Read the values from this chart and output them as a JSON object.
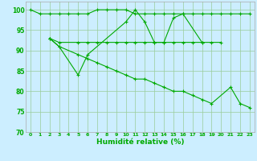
{
  "xlabel": "Humidité relative (%)",
  "xlim": [
    -0.5,
    23.5
  ],
  "ylim": [
    70,
    102
  ],
  "yticks": [
    70,
    75,
    80,
    85,
    90,
    95,
    100
  ],
  "xtick_labels": [
    "0",
    "1",
    "2",
    "3",
    "4",
    "5",
    "6",
    "7",
    "8",
    "9",
    "10",
    "11",
    "12",
    "13",
    "14",
    "15",
    "16",
    "17",
    "18",
    "19",
    "20",
    "21",
    "22",
    "23"
  ],
  "bg_color": "#cceeff",
  "grid_color": "#99cc99",
  "line_color": "#00aa00",
  "line1_x": [
    0,
    1,
    2,
    3,
    4,
    5,
    6,
    7,
    8,
    9,
    10,
    11,
    12,
    13,
    14,
    15,
    16,
    17,
    18,
    19,
    20,
    21,
    22,
    23
  ],
  "line1_y": [
    100,
    99,
    99,
    99,
    99,
    99,
    99,
    100,
    100,
    100,
    100,
    99,
    99,
    99,
    99,
    99,
    99,
    99,
    99,
    99,
    99,
    99,
    99,
    99
  ],
  "line2_x": [
    2,
    3,
    5,
    6,
    10,
    11,
    12,
    13,
    14,
    15,
    16,
    18
  ],
  "line2_y": [
    93,
    91,
    84,
    89,
    97,
    100,
    97,
    92,
    92,
    98,
    99,
    92
  ],
  "line3_x": [
    2,
    3,
    5,
    6,
    7,
    8,
    9,
    10,
    11,
    12,
    13,
    14,
    15,
    16,
    17,
    18,
    19,
    20
  ],
  "line3_y": [
    93,
    92,
    92,
    92,
    92,
    92,
    92,
    92,
    92,
    92,
    92,
    92,
    92,
    92,
    92,
    92,
    92,
    92
  ],
  "line4_x": [
    2,
    3,
    5,
    6,
    7,
    8,
    9,
    10,
    11,
    12,
    13,
    14,
    15,
    16,
    17,
    18,
    19,
    21,
    22,
    23
  ],
  "line4_y": [
    93,
    91,
    89,
    88,
    87,
    86,
    85,
    84,
    83,
    83,
    82,
    81,
    80,
    80,
    79,
    78,
    77,
    81,
    77,
    76
  ]
}
